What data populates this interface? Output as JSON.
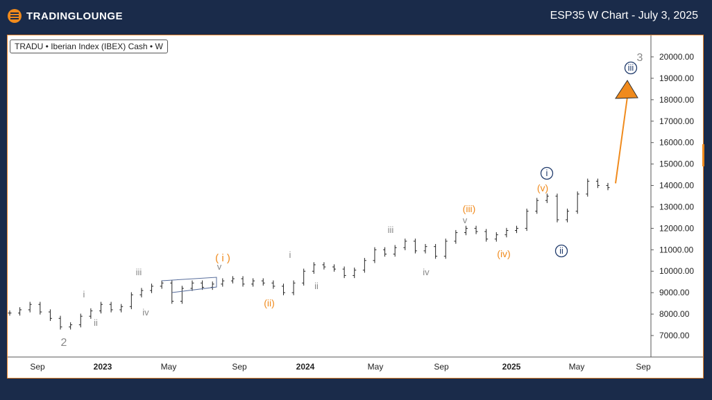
{
  "header": {
    "brand": "TradingLounge",
    "brand_display": "TRADINGLOUNGE",
    "chart_title": "ESP35 W Chart - July 3, 2025"
  },
  "colors": {
    "background": "#1a2b4a",
    "orange": "#f08a1c",
    "grey": "#888888",
    "navy": "#1f3a6b",
    "candle": "#222222"
  },
  "chart_data": {
    "type": "line",
    "legend_text": "TRADU • Iberian Index (IBEX) Cash • W",
    "title": "ESP35 W Chart - July 3, 2025",
    "xlabel": "",
    "ylabel": "",
    "x_ticks": [
      "Sep",
      "2023",
      "May",
      "Sep",
      "2024",
      "May",
      "Sep",
      "2025",
      "May",
      "Sep"
    ],
    "y_ticks": [
      "7000.00",
      "8000.00",
      "9000.00",
      "10000.00",
      "11000.00",
      "12000.00",
      "13000.00",
      "14000.00",
      "15000.00",
      "16000.00",
      "17000.00",
      "18000.00",
      "19000.00",
      "20000.00"
    ],
    "ylim": [
      6000,
      20500
    ],
    "series": [
      {
        "name": "IBEX weekly close",
        "values": [
          8050,
          8200,
          8450,
          8100,
          7800,
          7400,
          7500,
          7900,
          8150,
          8450,
          8200,
          8350,
          8900,
          9100,
          9300,
          9450,
          8600,
          9200,
          9450,
          9250,
          9400,
          9550,
          9650,
          9400,
          9550,
          9450,
          9300,
          9000,
          9450,
          10000,
          10300,
          10200,
          10100,
          9800,
          10050,
          10500,
          11000,
          10800,
          11100,
          11400,
          10950,
          11150,
          10700,
          11400,
          11800,
          12000,
          11850,
          11500,
          11700,
          11900,
          12000,
          12800,
          13300,
          13500,
          12400,
          12800,
          13600,
          14200,
          14000,
          13900
        ]
      },
      {
        "name": "Projection",
        "values": [
          14100,
          19200
        ]
      }
    ],
    "wave_labels": [
      {
        "text": "2",
        "color": "grey"
      },
      {
        "text": "i",
        "color": "grey"
      },
      {
        "text": "ii",
        "color": "grey"
      },
      {
        "text": "iii",
        "color": "grey"
      },
      {
        "text": "iv",
        "color": "grey"
      },
      {
        "text": "v",
        "color": "grey"
      },
      {
        "text": "( i )",
        "color": "orange"
      },
      {
        "text": "(ii)",
        "color": "orange"
      },
      {
        "text": "i",
        "color": "grey"
      },
      {
        "text": "ii",
        "color": "grey"
      },
      {
        "text": "iii",
        "color": "grey"
      },
      {
        "text": "iv",
        "color": "grey"
      },
      {
        "text": "v",
        "color": "grey"
      },
      {
        "text": "(iii)",
        "color": "orange"
      },
      {
        "text": "(iv)",
        "color": "orange"
      },
      {
        "text": "(v)",
        "color": "orange"
      },
      {
        "text": "i",
        "color": "navy"
      },
      {
        "text": "ii",
        "color": "navy"
      },
      {
        "text": "iii",
        "color": "navy"
      },
      {
        "text": "3",
        "color": "grey"
      }
    ]
  }
}
